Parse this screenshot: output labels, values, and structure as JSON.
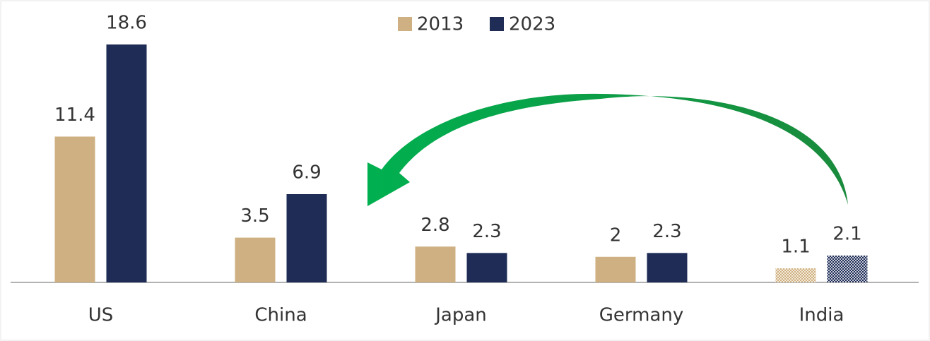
{
  "chart_data": {
    "type": "bar",
    "categories": [
      "US",
      "China",
      "Japan",
      "Germany",
      "India"
    ],
    "series": [
      {
        "name": "2013",
        "color": "#cfb082",
        "values": [
          11.4,
          3.5,
          2.8,
          2,
          1.1
        ]
      },
      {
        "name": "2023",
        "color": "#1e2c56",
        "values": [
          18.6,
          6.9,
          2.3,
          2.3,
          2.1
        ]
      }
    ],
    "patterned": [
      false,
      false,
      false,
      false,
      true
    ],
    "legend": "top"
  }
}
